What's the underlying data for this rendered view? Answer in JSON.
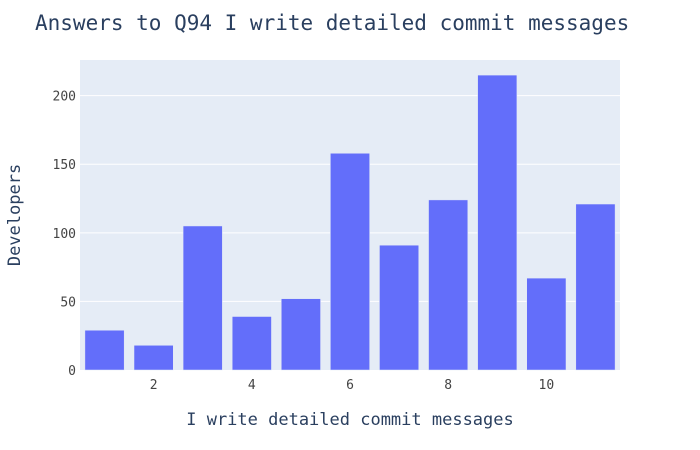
{
  "chart_data": {
    "type": "bar",
    "title": "Answers to Q94 I write detailed commit messages",
    "xlabel": "I write detailed commit messages",
    "ylabel": "Developers",
    "x": [
      1,
      2,
      3,
      4,
      5,
      6,
      7,
      8,
      9,
      10,
      11
    ],
    "values": [
      29,
      18,
      105,
      39,
      52,
      158,
      91,
      124,
      215,
      67,
      121
    ],
    "x_ticks": [
      2,
      4,
      6,
      8,
      10
    ],
    "y_ticks": [
      0,
      50,
      100,
      150,
      200
    ],
    "xlim": [
      0.5,
      11.5
    ],
    "ylim": [
      0,
      226
    ],
    "grid": true,
    "colors": {
      "bar": "#636efa",
      "plot_background": "#e5ecf6",
      "grid": "#ffffff"
    }
  }
}
